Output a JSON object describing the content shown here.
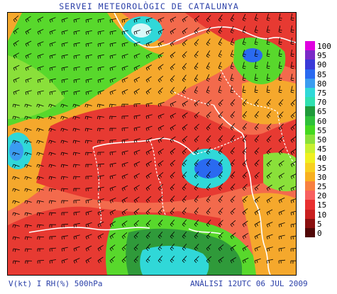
{
  "title": "SERVEI METEOROLÒGIC DE CATALUNYA",
  "footer": {
    "left": "V(kt) I RH(%) 500hPa",
    "right": "ANÀLISI 12UTC 06 JUL 2009"
  },
  "legend": {
    "labels": [
      "100",
      "95",
      "90",
      "85",
      "80",
      "75",
      "70",
      "65",
      "60",
      "55",
      "50",
      "45",
      "40",
      "35",
      "30",
      "25",
      "20",
      "15",
      "10",
      "5",
      "0"
    ],
    "colors": [
      "#e000e0",
      "#7a2ac8",
      "#3a3ad8",
      "#2a6af0",
      "#3a9cf0",
      "#30d8d8",
      "#30e0b0",
      "#1f9a3a",
      "#2fc03a",
      "#45d81f",
      "#8ae03a",
      "#c8f030",
      "#f0f020",
      "#f8d020",
      "#f8b020",
      "#f88040",
      "#f86060",
      "#e83030",
      "#c82020",
      "#8a1010",
      "#500808"
    ]
  },
  "map": {
    "background_color": "#f36a4c",
    "region_colors": {
      "dry": "#e73a32",
      "moderate": "#f5a82c",
      "humid": "#58d82c",
      "very_humid": "#2f9a3a",
      "saturated": "#30d8d8",
      "peak": "#2a6af0"
    }
  }
}
